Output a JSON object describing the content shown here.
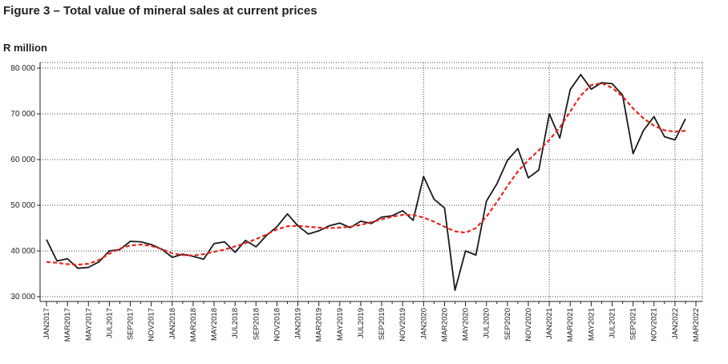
{
  "chart_data": {
    "type": "line",
    "title": "Figure 3 – Total value of mineral sales at current prices",
    "y_label": "R million",
    "categories": [
      "JAN2017",
      null,
      "MAR2017",
      null,
      "MAY2017",
      null,
      "JUL2017",
      null,
      "SEP2017",
      null,
      "NOV2017",
      null,
      "JAN2018",
      null,
      "MAR2018",
      null,
      "MAY2018",
      null,
      "JUL2018",
      null,
      "SEP2018",
      null,
      "NOV2018",
      null,
      "JAN2019",
      null,
      "MAR2019",
      null,
      "MAY2019",
      null,
      "JUL2019",
      null,
      "SEP2019",
      null,
      "NOV2019",
      null,
      "JAN2020",
      null,
      "MAR2020",
      null,
      "MAY2020",
      null,
      "JUL2020",
      null,
      "SEP2020",
      null,
      "NOV2020",
      null,
      "JAN2021",
      null,
      "MAR2021",
      null,
      "MAY2021",
      null,
      "JUL2021",
      null,
      "SEP2021",
      null,
      "NOV2021",
      null,
      "JAN2022",
      null,
      "MAR2022"
    ],
    "series": [
      {
        "color": "#1a1a1a",
        "dash": false,
        "values": [
          42500,
          37800,
          38300,
          36200,
          36400,
          37600,
          40000,
          40300,
          42100,
          42000,
          41400,
          40400,
          38600,
          39300,
          38800,
          38200,
          41600,
          42000,
          39700,
          42300,
          40900,
          43400,
          45300,
          48100,
          45500,
          43700,
          44400,
          45500,
          46100,
          45100,
          46500,
          46000,
          47400,
          47700,
          48800,
          46700,
          56300,
          51300,
          49400,
          31400,
          40000,
          39100,
          50900,
          54700,
          59800,
          62400,
          56000,
          57700,
          70000,
          64700,
          75300,
          78600,
          75400,
          76800,
          76600,
          74100,
          61300,
          66400,
          69400,
          65000,
          64300,
          68900,
          null
        ]
      },
      {
        "color": "#e8251f",
        "dash": true,
        "values": [
          37600,
          37400,
          37100,
          37000,
          37200,
          38000,
          39400,
          40500,
          41200,
          41400,
          41100,
          40400,
          39500,
          39100,
          39000,
          39300,
          39800,
          40300,
          41000,
          41700,
          42600,
          43600,
          44700,
          45400,
          45500,
          45300,
          45100,
          45000,
          45100,
          45300,
          45700,
          46300,
          46900,
          47500,
          47900,
          47900,
          47300,
          46400,
          45300,
          44300,
          44000,
          45000,
          47500,
          50700,
          54200,
          57400,
          59900,
          62000,
          64300,
          67000,
          70500,
          74000,
          76300,
          76700,
          75700,
          73800,
          71200,
          69000,
          67400,
          66400,
          66100,
          66300,
          null
        ]
      }
    ],
    "ylim": [
      30000,
      80000
    ],
    "yticks": [
      {
        "value": 30000,
        "label": "30 000"
      },
      {
        "value": 40000,
        "label": "40 000"
      },
      {
        "value": 50000,
        "label": "50 000"
      },
      {
        "value": 60000,
        "label": "60 000"
      },
      {
        "value": 70000,
        "label": "70 000"
      },
      {
        "value": 80000,
        "label": "80 000"
      }
    ],
    "grid": true
  }
}
